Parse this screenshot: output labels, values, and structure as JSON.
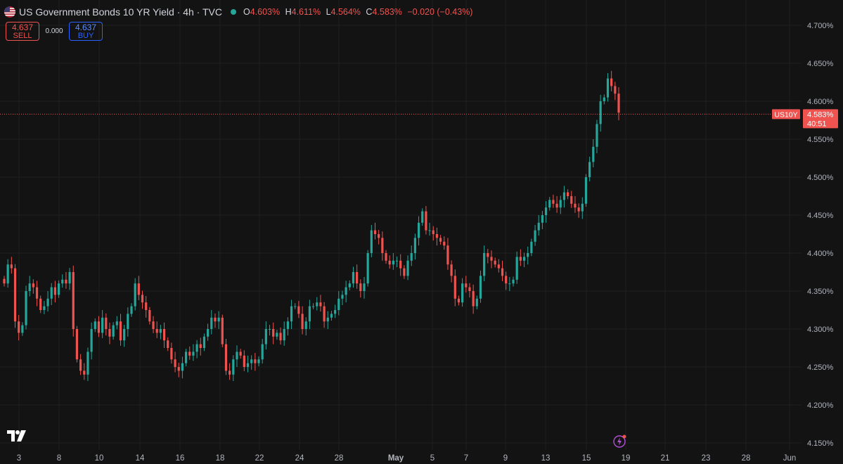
{
  "header": {
    "title": "US Government Bonds 10 YR Yield · 4h · TVC",
    "ohlc": [
      {
        "k": "O",
        "v": "4.603%"
      },
      {
        "k": "H",
        "v": "4.611%"
      },
      {
        "k": "L",
        "v": "4.564%"
      },
      {
        "k": "C",
        "v": "4.583%"
      },
      {
        "k": "",
        "v": "−0.020 (−0.43%)"
      }
    ]
  },
  "trade": {
    "sell_price": "4.637",
    "sell_label": "SELL",
    "spread": "0.000",
    "buy_price": "4.637",
    "buy_label": "BUY"
  },
  "colors": {
    "up": "#26a69a",
    "down": "#ef5350",
    "background": "#131313",
    "grid": "#1f1f1f",
    "axis_text": "#b2b5be"
  },
  "icons": {
    "flag": "us-flag-icon",
    "logo": "tradingview-logo-icon",
    "bolt": "lightning-icon"
  },
  "chart_data": {
    "type": "candlestick",
    "title": "US Government Bonds 10 YR Yield · 4h · TVC",
    "ylim": [
      4.145,
      4.705
    ],
    "y_ticks": [
      "4.700%",
      "4.650%",
      "4.600%",
      "4.550%",
      "4.500%",
      "4.450%",
      "4.400%",
      "4.350%",
      "4.300%",
      "4.250%",
      "4.200%",
      "4.150%"
    ],
    "x_ticks": [
      "3",
      "8",
      "10",
      "14",
      "16",
      "18",
      "22",
      "24",
      "28",
      "May",
      "5",
      "7",
      "9",
      "13",
      "15",
      "19",
      "21",
      "23",
      "28",
      "Jun"
    ],
    "grid": true,
    "last": {
      "symbol": "US10Y",
      "price": "4.583%",
      "countdown": "40:51"
    },
    "series": [
      {
        "values": [
          4.36,
          4.385,
          4.38,
          4.31,
          4.295,
          4.305,
          4.35,
          4.36,
          4.355,
          4.34,
          4.325,
          4.33,
          4.34,
          4.355,
          4.345,
          4.36,
          4.365,
          4.36,
          4.375,
          4.3,
          4.26,
          4.245,
          4.24,
          4.27,
          4.3,
          4.31,
          4.295,
          4.315,
          4.3,
          4.29,
          4.305,
          4.31,
          4.285,
          4.3,
          4.32,
          4.33,
          4.36,
          4.345,
          4.335,
          4.325,
          4.31,
          4.3,
          4.295,
          4.3,
          4.285,
          4.275,
          4.26,
          4.25,
          4.245,
          4.255,
          4.27,
          4.265,
          4.27,
          4.28,
          4.275,
          4.29,
          4.3,
          4.315,
          4.31,
          4.315,
          4.28,
          4.245,
          4.24,
          4.26,
          4.27,
          4.265,
          4.25,
          4.255,
          4.26,
          4.255,
          4.26,
          4.28,
          4.3,
          4.3,
          4.29,
          4.295,
          4.285,
          4.3,
          4.31,
          4.33,
          4.33,
          4.32,
          4.3,
          4.31,
          4.33,
          4.33,
          4.335,
          4.33,
          4.31,
          4.315,
          4.32,
          4.325,
          4.34,
          4.345,
          4.355,
          4.36,
          4.375,
          4.36,
          4.35,
          4.36,
          4.4,
          4.43,
          4.425,
          4.42,
          4.4,
          4.39,
          4.385,
          4.39,
          4.39,
          4.38,
          4.37,
          4.39,
          4.4,
          4.42,
          4.44,
          4.455,
          4.43,
          4.43,
          4.425,
          4.42,
          4.415,
          4.41,
          4.385,
          4.37,
          4.34,
          4.335,
          4.36,
          4.355,
          4.35,
          4.33,
          4.34,
          4.37,
          4.4,
          4.395,
          4.39,
          4.385,
          4.38,
          4.37,
          4.36,
          4.36,
          4.365,
          4.395,
          4.39,
          4.395,
          4.4,
          4.415,
          4.43,
          4.44,
          4.45,
          4.46,
          4.47,
          4.465,
          4.46,
          4.47,
          4.48,
          4.475,
          4.465,
          4.46,
          4.455,
          4.465,
          4.5,
          4.52,
          4.54,
          4.57,
          4.6,
          4.605,
          4.63,
          4.62,
          4.61,
          4.585
        ]
      }
    ]
  }
}
